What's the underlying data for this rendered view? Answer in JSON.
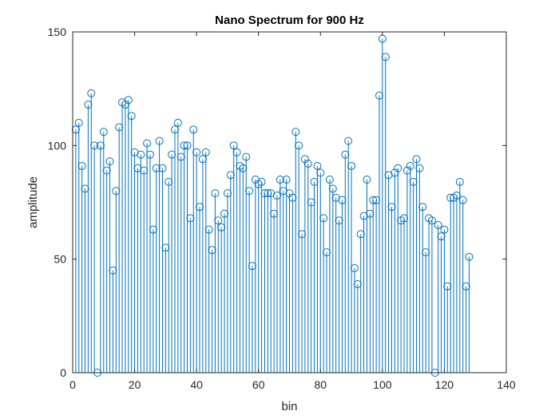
{
  "chart_data": {
    "type": "stem",
    "title": "Nano Spectrum for 900 Hz",
    "xlabel": "bin",
    "ylabel": "amplitude",
    "xlim": [
      0,
      140
    ],
    "ylim": [
      0,
      150
    ],
    "xticks": [
      0,
      20,
      40,
      60,
      80,
      100,
      120,
      140
    ],
    "yticks": [
      0,
      50,
      100,
      150
    ],
    "grid": false,
    "series_color": "#0072BD",
    "x_start": 1,
    "values": [
      107,
      110,
      91,
      81,
      118,
      123,
      100,
      0,
      100,
      106,
      89,
      93,
      45,
      80,
      108,
      119,
      118,
      120,
      113,
      97,
      90,
      96,
      89,
      101,
      96,
      63,
      90,
      102,
      90,
      55,
      84,
      96,
      107,
      110,
      95,
      100,
      100,
      68,
      107,
      97,
      73,
      94,
      97,
      63,
      54,
      79,
      67,
      64,
      70,
      79,
      87,
      100,
      97,
      91,
      90,
      95,
      80,
      47,
      85,
      83,
      84,
      79,
      79,
      79,
      70,
      78,
      85,
      80,
      85,
      79,
      77,
      106,
      100,
      61,
      94,
      92,
      75,
      84,
      91,
      88,
      68,
      53,
      85,
      81,
      77,
      67,
      76,
      96,
      102,
      91,
      46,
      39,
      61,
      69,
      85,
      70,
      76,
      76,
      122,
      147,
      139,
      87,
      73,
      88,
      90,
      67,
      68,
      89,
      91,
      84,
      94,
      90,
      73,
      53,
      68,
      67,
      0,
      65,
      60,
      63,
      38,
      77,
      77,
      78,
      84,
      76,
      38,
      51
    ]
  }
}
